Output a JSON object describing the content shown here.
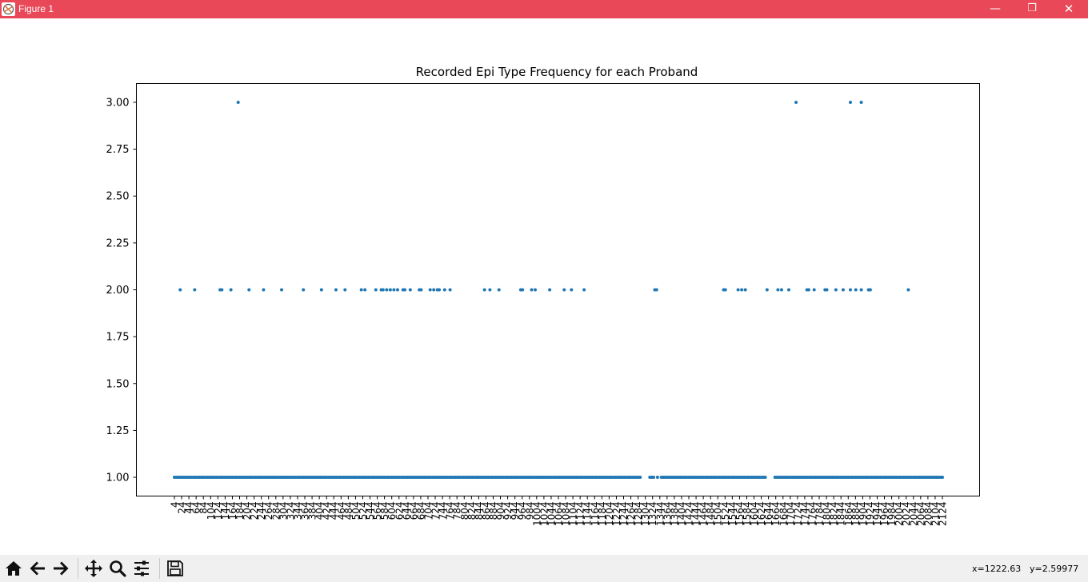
{
  "window": {
    "title": "Figure 1",
    "minimize_glyph": "—",
    "maximize_glyph": "❐",
    "close_glyph": "✕"
  },
  "colors": {
    "titlebar": "#e84857",
    "marker": "#1f77b4"
  },
  "toolbar": {
    "buttons": [
      "home-icon",
      "back-arrow-icon",
      "forward-arrow-icon",
      "pan-icon",
      "zoom-icon",
      "configure-subplots-icon",
      "save-icon"
    ],
    "coord_x": "x=1222.63",
    "coord_y": "y=2.59977"
  },
  "chart_data": {
    "type": "scatter",
    "title": "Recorded Epi Type Frequency for each Proband",
    "xlabel": "",
    "ylabel": "",
    "ylim": [
      0.9,
      3.1
    ],
    "yticks": [
      "1.00",
      "1.25",
      "1.50",
      "1.75",
      "2.00",
      "2.25",
      "2.50",
      "2.75",
      "3.00"
    ],
    "xtick_labels": [
      "4",
      "24",
      "44",
      "64",
      "84",
      "104",
      "124",
      "144",
      "164",
      "184",
      "204",
      "224",
      "244",
      "264",
      "284",
      "304",
      "324",
      "344",
      "364",
      "384",
      "404",
      "424",
      "444",
      "464",
      "484",
      "504",
      "524",
      "544",
      "564",
      "584",
      "604",
      "624",
      "644",
      "664",
      "684",
      "704",
      "724",
      "744",
      "764",
      "784",
      "804",
      "824",
      "844",
      "864",
      "884",
      "904",
      "924",
      "944",
      "964",
      "984",
      "1004",
      "1024",
      "1044",
      "1064",
      "1084",
      "1104",
      "1124",
      "1144",
      "1164",
      "1184",
      "1204",
      "1224",
      "1244",
      "1264",
      "1284",
      "1304",
      "1324",
      "1344",
      "1364",
      "1384",
      "1404",
      "1424",
      "1444",
      "1464",
      "1484",
      "1504",
      "1524",
      "1544",
      "1564",
      "1584",
      "1604",
      "1624",
      "1644",
      "1664",
      "1684",
      "1704",
      "1724",
      "1744",
      "1764",
      "1784",
      "1804",
      "1824",
      "1844",
      "1864",
      "1884",
      "1904",
      "1924",
      "1944",
      "1964",
      "1984",
      "2004",
      "2024",
      "2044",
      "2064",
      "2084",
      "2104",
      "2124"
    ],
    "grid": false,
    "legend": "none",
    "x_span": [
      4,
      2124
    ],
    "n_points": 400,
    "value_3_x": [
      180,
      1720,
      1870,
      1900
    ],
    "value_2_x": [
      20,
      60,
      130,
      135,
      160,
      210,
      250,
      300,
      360,
      410,
      450,
      475,
      520,
      530,
      560,
      575,
      580,
      590,
      600,
      610,
      620,
      635,
      640,
      655,
      680,
      685,
      710,
      720,
      730,
      735,
      750,
      765,
      860,
      875,
      900,
      960,
      965,
      990,
      1000,
      1040,
      1080,
      1100,
      1135,
      1330,
      1335,
      1520,
      1525,
      1560,
      1570,
      1580,
      1640,
      1670,
      1680,
      1700,
      1750,
      1755,
      1770,
      1800,
      1805,
      1830,
      1850,
      1870,
      1885,
      1900,
      1920,
      1925,
      2030
    ]
  }
}
